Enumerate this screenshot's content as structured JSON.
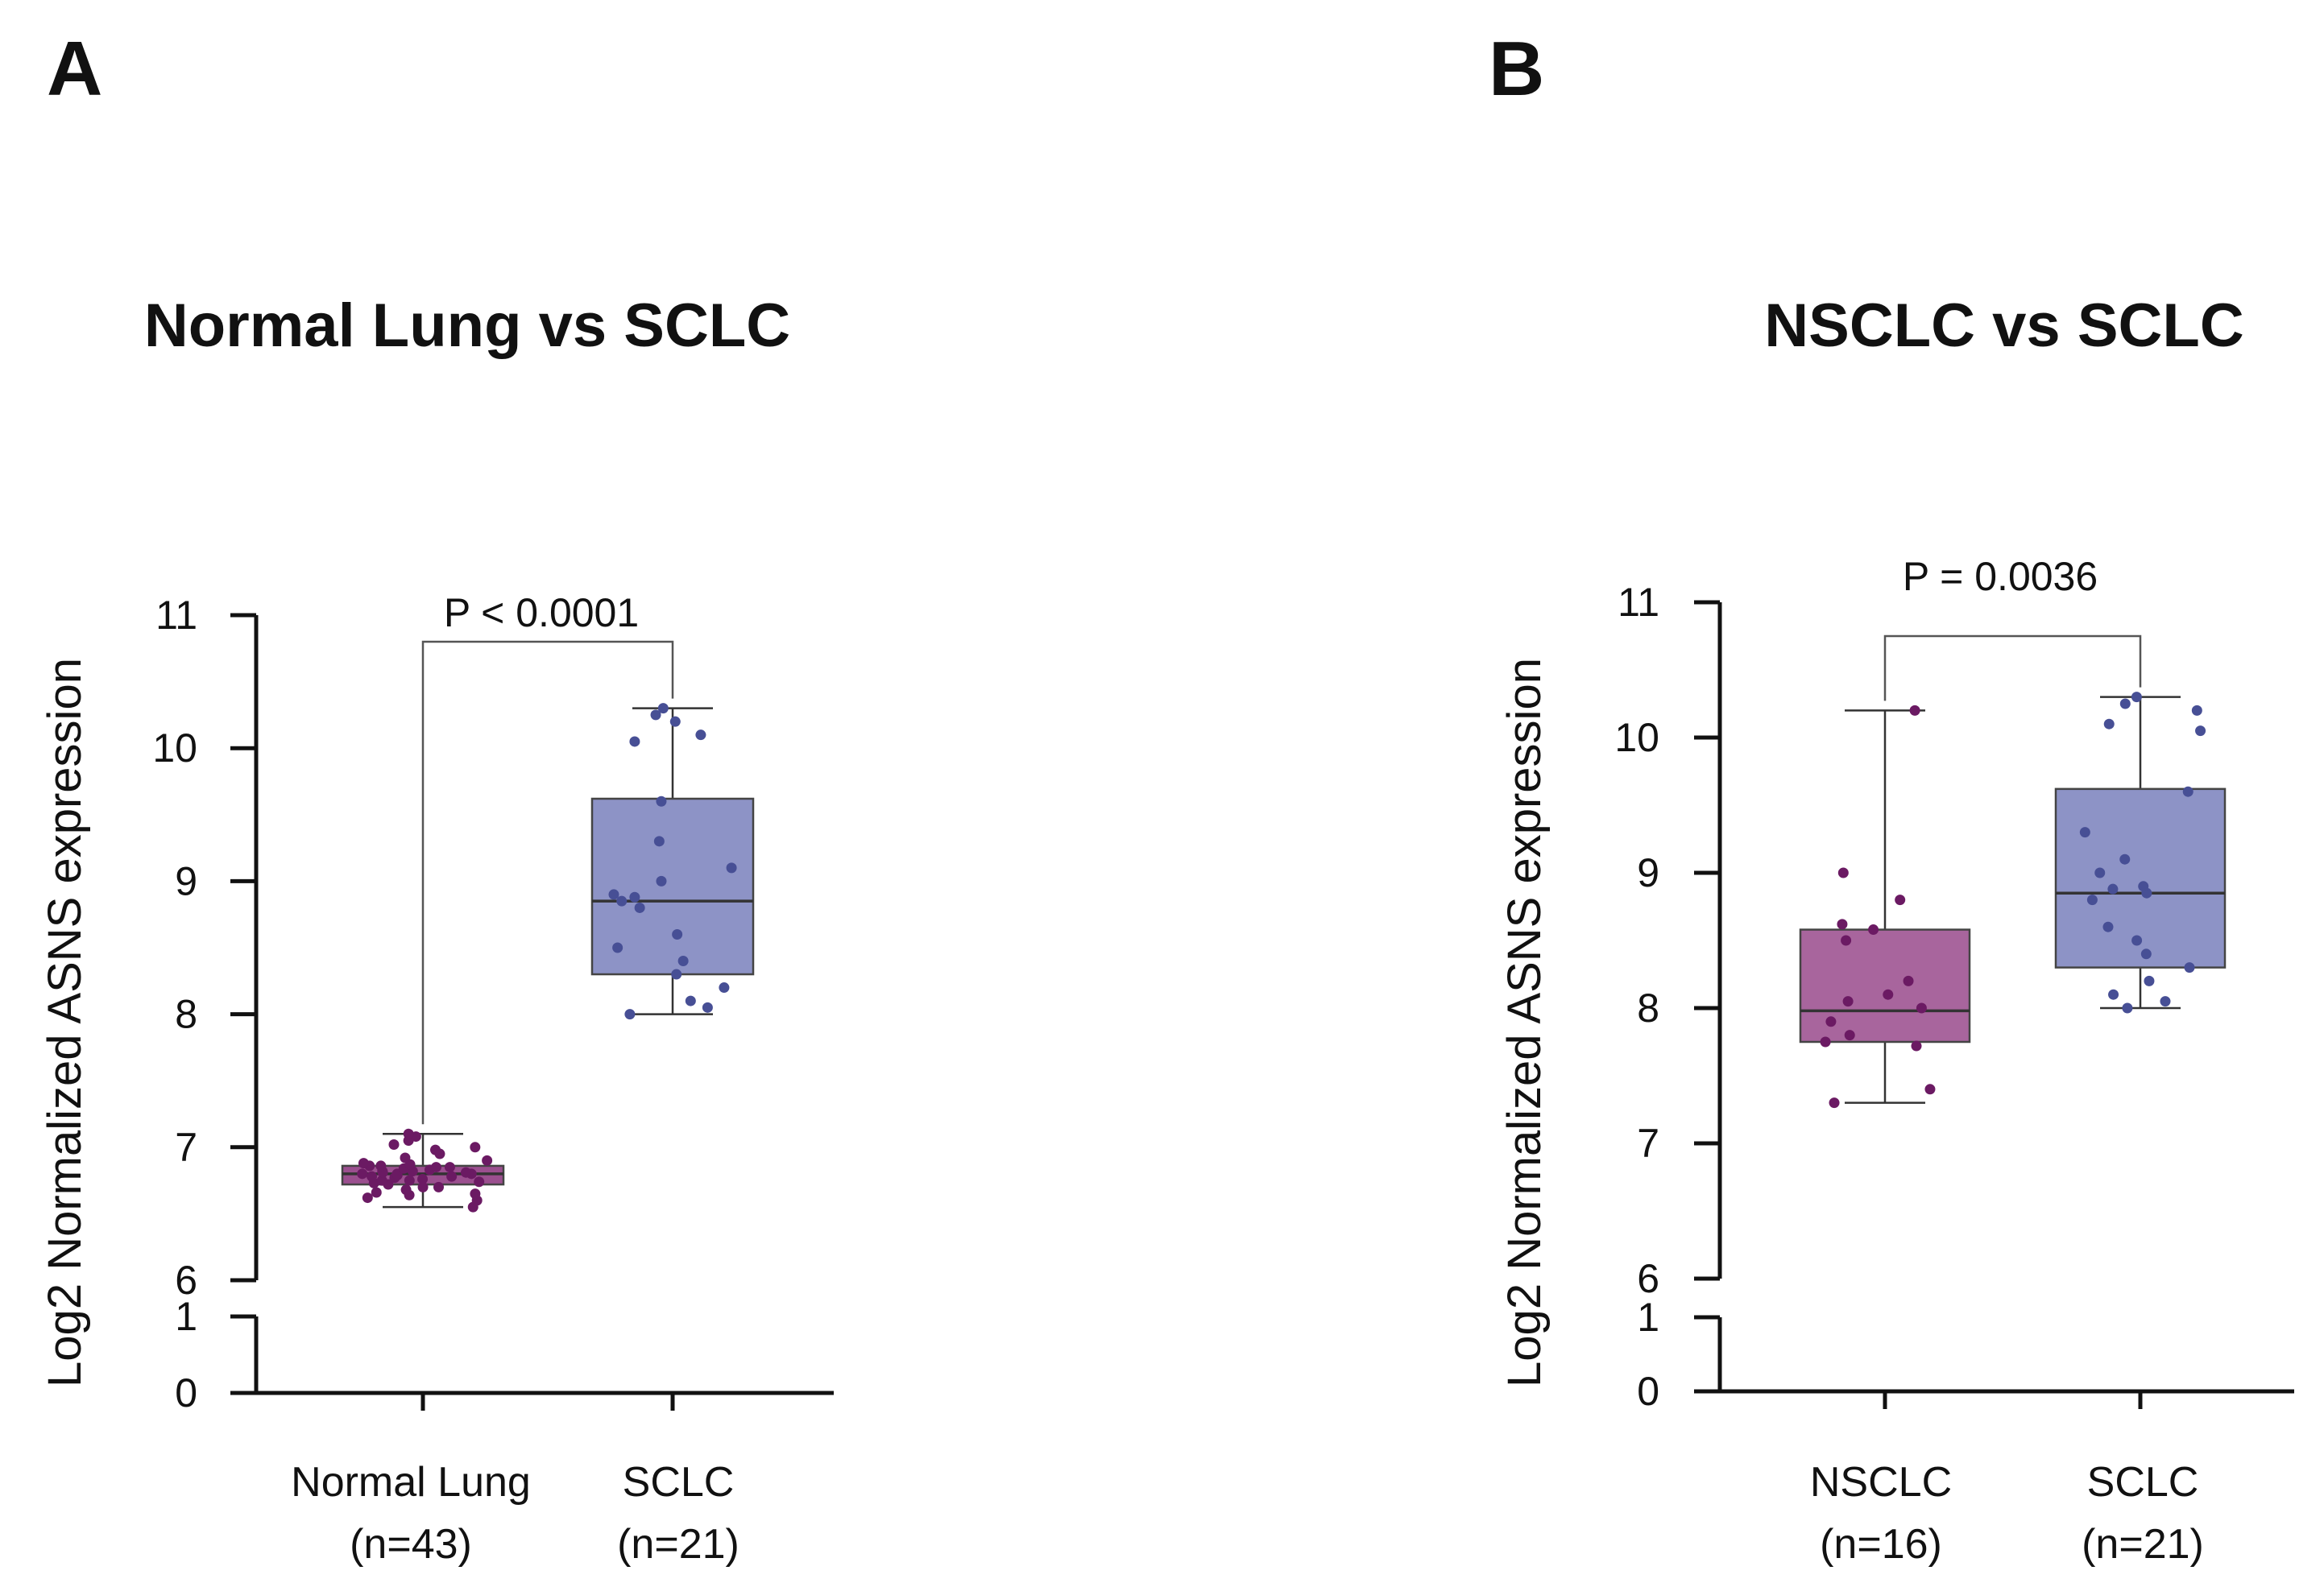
{
  "chart_data": [
    {
      "type": "box",
      "panel_label": "A",
      "title": "Normal Lung vs SCLC",
      "ylabel": "Log2 Normalized ASNS expression",
      "xlabel": "",
      "y_ticks_upper": [
        6,
        7,
        8,
        9,
        10,
        11
      ],
      "y_ticks_lower": [
        0,
        1
      ],
      "y_break": [
        1,
        6
      ],
      "ylim": [
        0,
        11
      ],
      "comparison": {
        "text": "P < 0.0001",
        "y": 10.8
      },
      "groups": [
        {
          "name": "Normal Lung",
          "n_label": "(n=43)",
          "color": "#9b4f8f",
          "point_color": "#6b1a63",
          "min": 6.55,
          "q1": 6.72,
          "median": 6.8,
          "q3": 6.86,
          "max": 7.1,
          "points": [
            6.55,
            6.6,
            6.62,
            6.64,
            6.65,
            6.66,
            6.68,
            6.7,
            6.7,
            6.72,
            6.73,
            6.74,
            6.75,
            6.75,
            6.76,
            6.77,
            6.78,
            6.78,
            6.79,
            6.8,
            6.8,
            6.8,
            6.81,
            6.81,
            6.82,
            6.82,
            6.83,
            6.84,
            6.85,
            6.85,
            6.86,
            6.86,
            6.87,
            6.88,
            6.9,
            6.92,
            6.95,
            6.98,
            7.0,
            7.02,
            7.05,
            7.08,
            7.1
          ]
        },
        {
          "name": "SCLC",
          "n_label": "(n=21)",
          "color": "#8d93c6",
          "point_color": "#474f95",
          "min": 8.0,
          "q1": 8.3,
          "median": 8.85,
          "q3": 9.62,
          "max": 10.3,
          "points": [
            8.0,
            8.05,
            8.1,
            8.2,
            8.3,
            8.4,
            8.5,
            8.6,
            8.8,
            8.85,
            8.88,
            8.9,
            9.0,
            9.1,
            9.3,
            9.6,
            10.05,
            10.1,
            10.2,
            10.25,
            10.3
          ]
        }
      ]
    },
    {
      "type": "box",
      "panel_label": "B",
      "title": "NSCLC vs SCLC",
      "ylabel": "Log2 Normalized ASNS expression",
      "xlabel": "",
      "y_ticks_upper": [
        6,
        7,
        8,
        9,
        10,
        11
      ],
      "y_ticks_lower": [
        0,
        1
      ],
      "y_break": [
        1,
        6
      ],
      "ylim": [
        0,
        11
      ],
      "comparison": {
        "text": "P = 0.0036",
        "y": 10.75
      },
      "groups": [
        {
          "name": "NSCLC",
          "n_label": "(n=16)",
          "color": "#a8659d",
          "point_color": "#6b1a63",
          "min": 7.3,
          "q1": 7.75,
          "median": 7.98,
          "q3": 8.58,
          "max": 10.2,
          "points": [
            7.3,
            7.4,
            7.72,
            7.75,
            7.8,
            7.9,
            8.0,
            8.05,
            8.1,
            8.2,
            8.5,
            8.58,
            8.62,
            8.8,
            9.0,
            10.2
          ]
        },
        {
          "name": "SCLC",
          "n_label": "(n=21)",
          "color": "#8d93c6",
          "point_color": "#474f95",
          "min": 8.0,
          "q1": 8.3,
          "median": 8.85,
          "q3": 9.62,
          "max": 10.3,
          "points": [
            8.0,
            8.05,
            8.1,
            8.2,
            8.3,
            8.4,
            8.5,
            8.6,
            8.8,
            8.85,
            8.88,
            8.9,
            9.0,
            9.1,
            9.3,
            9.6,
            10.05,
            10.1,
            10.2,
            10.25,
            10.3
          ]
        }
      ]
    }
  ]
}
